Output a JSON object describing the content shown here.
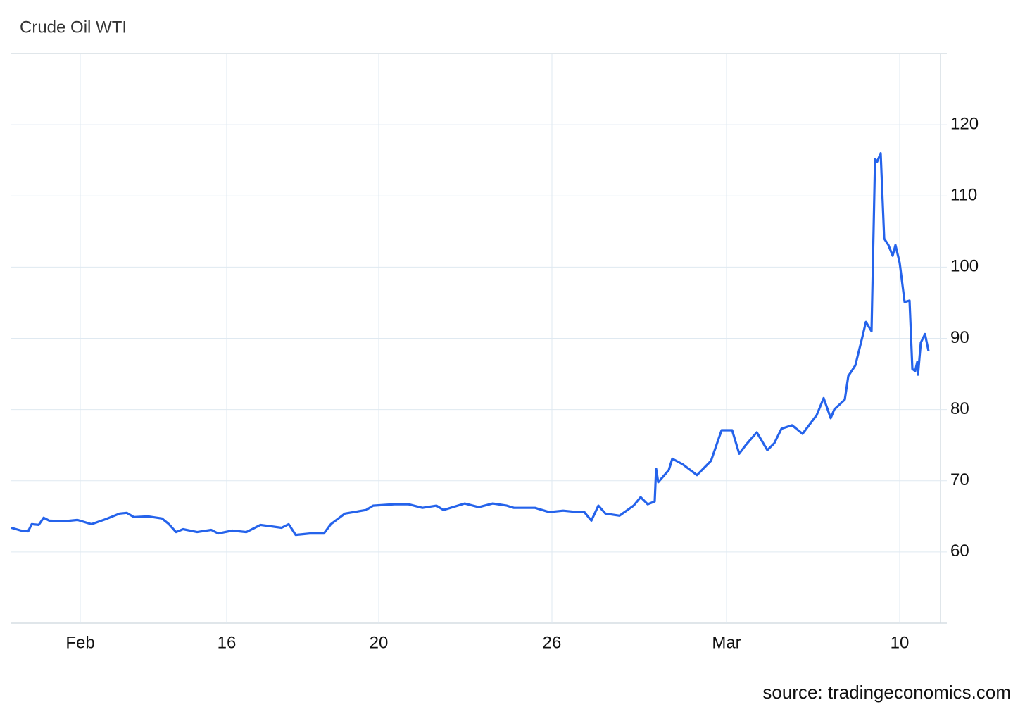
{
  "chart_data": {
    "type": "line",
    "title": "Crude Oil WTI",
    "source": "source: tradingeconomics.com",
    "x": [
      0,
      1.4,
      2.4,
      2.9,
      3.9,
      4.6,
      5.4,
      7.4,
      9.4,
      11.4,
      13.4,
      15.4,
      16.4,
      17.4,
      19.4,
      21.4,
      22.4,
      23.4,
      24.4,
      26.4,
      28.4,
      29.4,
      31.4,
      33.4,
      35.4,
      38.4,
      39.4,
      40.4,
      42.4,
      44.4,
      45.4,
      47.4,
      50.4,
      51.4,
      54.4,
      56.4,
      58.4,
      60.4,
      61.4,
      64.4,
      66.4,
      68.4,
      70.4,
      71.4,
      74.4,
      76.4,
      78.4,
      80.4,
      81.4,
      82.4,
      83.4,
      84.4,
      86.4,
      88.4,
      89.4,
      90.4,
      91.4,
      91.6,
      91.9,
      93.4,
      93.9,
      95.4,
      97.4,
      99.4,
      100.9,
      102.4,
      103.4,
      104.4,
      105.9,
      107.4,
      108.4,
      109.4,
      110.9,
      112.4,
      114.4,
      115.4,
      116.4,
      116.9,
      118.4,
      118.9,
      119.9,
      120.9,
      121.4,
      122.2,
      122.7,
      123.0,
      123.5,
      124.0,
      124.6,
      125.2,
      125.6,
      126.2,
      126.9,
      127.6,
      128.0,
      128.4,
      128.7,
      128.8,
      129.2,
      129.8,
      130.3
    ],
    "series": [
      {
        "name": "Crude Oil WTI",
        "color": "#2563eb",
        "values": [
          63.4,
          63.0,
          62.9,
          63.9,
          63.8,
          64.8,
          64.4,
          64.3,
          64.5,
          63.9,
          64.6,
          65.4,
          65.5,
          64.9,
          65.0,
          64.7,
          63.9,
          62.8,
          63.2,
          62.8,
          63.1,
          62.6,
          63.0,
          62.8,
          63.8,
          63.4,
          63.9,
          62.4,
          62.6,
          62.6,
          63.9,
          65.4,
          65.9,
          66.5,
          66.7,
          66.7,
          66.2,
          66.5,
          65.9,
          66.8,
          66.3,
          66.8,
          66.5,
          66.2,
          66.2,
          65.6,
          65.8,
          65.6,
          65.6,
          64.4,
          66.5,
          65.4,
          65.1,
          66.5,
          67.7,
          66.7,
          67.1,
          71.7,
          69.8,
          71.5,
          73.1,
          72.3,
          70.8,
          72.8,
          77.1,
          77.1,
          73.8,
          75.1,
          76.8,
          74.3,
          75.3,
          77.3,
          77.8,
          76.6,
          79.2,
          81.6,
          78.8,
          80.0,
          81.4,
          84.7,
          86.2,
          90.2,
          92.3,
          91.0,
          115.2,
          114.8,
          116.0,
          104.0,
          103.1,
          101.6,
          103.1,
          100.6,
          95.1,
          95.3,
          85.7,
          85.4,
          86.7,
          84.9,
          89.4,
          90.6,
          88.2
        ]
      }
    ],
    "xlim": [
      0,
      132
    ],
    "xticks": [
      {
        "value": 9.8,
        "label": "Feb"
      },
      {
        "value": 30.6,
        "label": "16"
      },
      {
        "value": 52.2,
        "label": "20"
      },
      {
        "value": 76.8,
        "label": "26"
      },
      {
        "value": 101.6,
        "label": "Mar"
      },
      {
        "value": 126.2,
        "label": "10"
      }
    ],
    "ylim": [
      50,
      130
    ],
    "yticks": [
      60,
      70,
      80,
      90,
      100,
      110,
      120
    ],
    "grid": true
  }
}
